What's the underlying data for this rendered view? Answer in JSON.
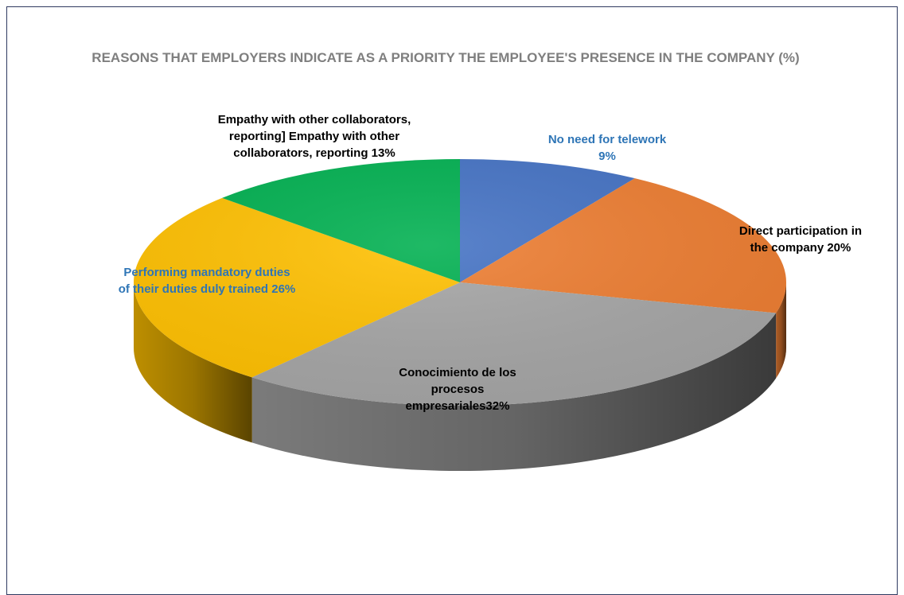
{
  "chart_data": {
    "type": "pie",
    "title": "REASONS THAT EMPLOYERS INDICATE AS A PRIORITY THE EMPLOYEE'S PRESENCE IN THE COMPANY (%)",
    "slices": [
      {
        "label": "No need for telework",
        "value": 9,
        "value_text": "9%",
        "color": "#4472c4",
        "label_color": "#2e75b6"
      },
      {
        "label": "Direct participation in the company",
        "value": 20,
        "value_text": "20%",
        "color": "#ed7d31",
        "label_color": "#000000"
      },
      {
        "label": "Conocimiento de los procesos empresariales",
        "value": 32,
        "value_text": "32%",
        "color": "#a5a5a5",
        "label_color": "#000000"
      },
      {
        "label": "Performing mandatory duties of their duties duly trained",
        "value": 26,
        "value_text": "26%",
        "color": "#ffc000",
        "label_color": "#2e75b6"
      },
      {
        "label": "Empathy with other collaborators, reporting] Empathy with other collaborators, reporting",
        "value": 13,
        "value_text": "13%",
        "color": "#00b050",
        "label_color": "#000000"
      }
    ],
    "labels_display": [
      [
        "No need for telework",
        "9%"
      ],
      [
        "Direct participation in",
        "the company 20%"
      ],
      [
        "Conocimiento de los",
        "procesos",
        "empresariales32%"
      ],
      [
        "Performing mandatory duties",
        "of their duties duly trained 26%"
      ],
      [
        "Empathy with other collaborators,",
        "reporting] Empathy with other",
        "collaborators, reporting 13%"
      ]
    ],
    "legend": "none",
    "style": "3d-pie"
  }
}
